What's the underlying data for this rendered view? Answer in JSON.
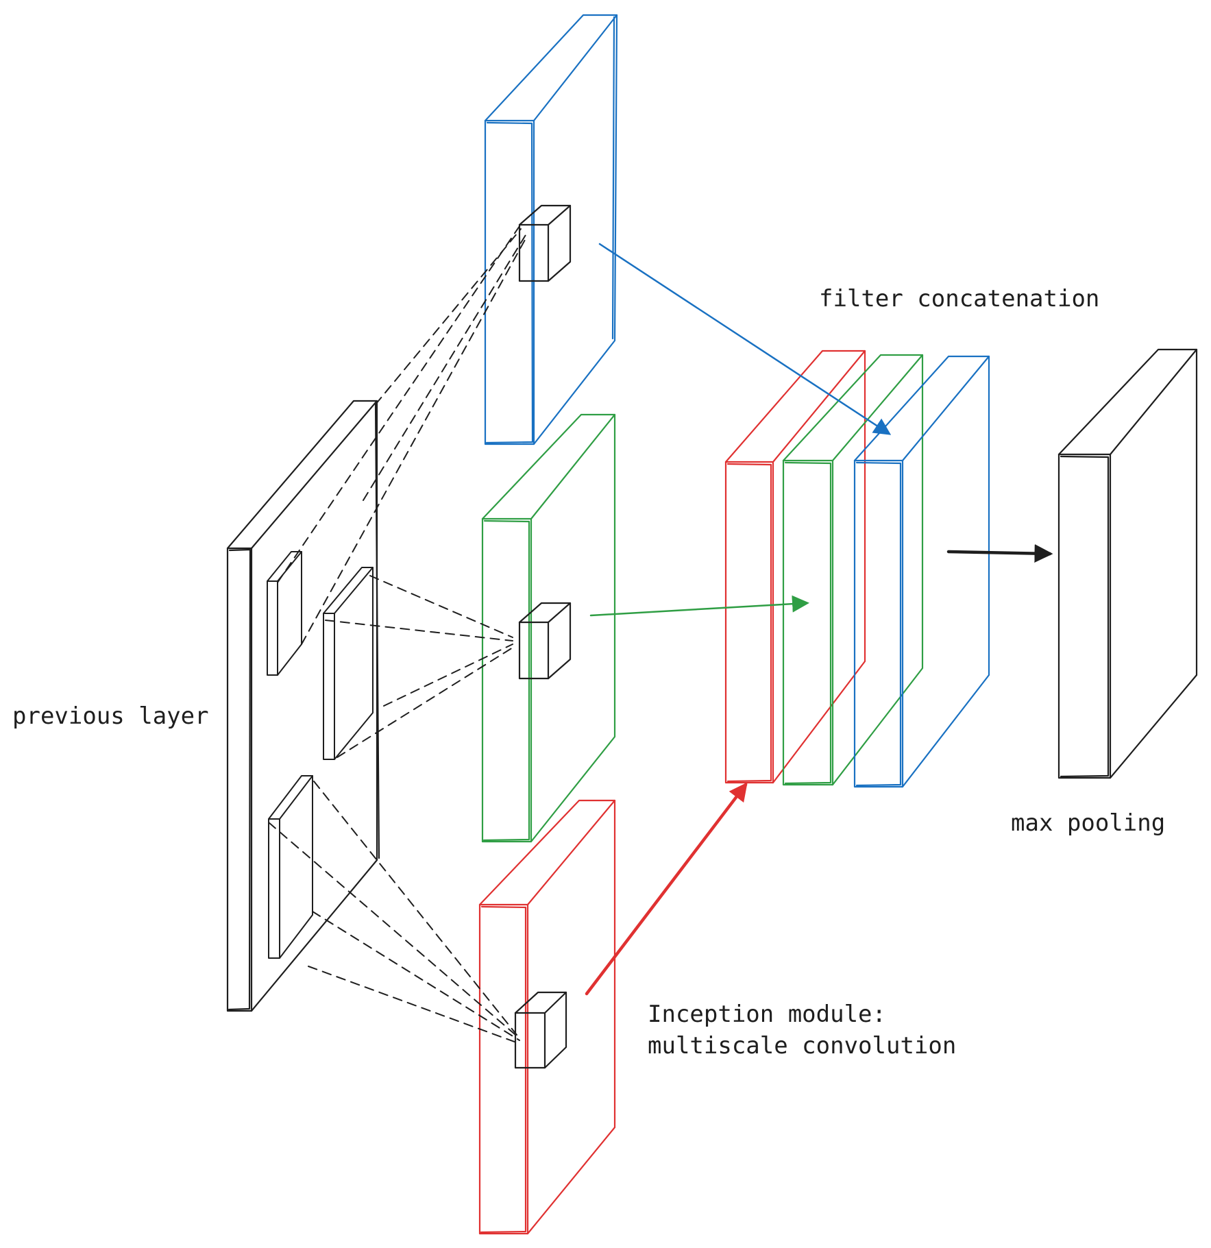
{
  "labels": {
    "previous_layer": "previous layer",
    "filter_concatenation": "filter concatenation",
    "max_pooling": "max pooling",
    "inception_line1": "Inception module:",
    "inception_line2": "multiscale convolution"
  },
  "colors": {
    "ink": "#1e1e1e",
    "blue": "#1971c2",
    "green": "#2f9e44",
    "red": "#e03131"
  }
}
